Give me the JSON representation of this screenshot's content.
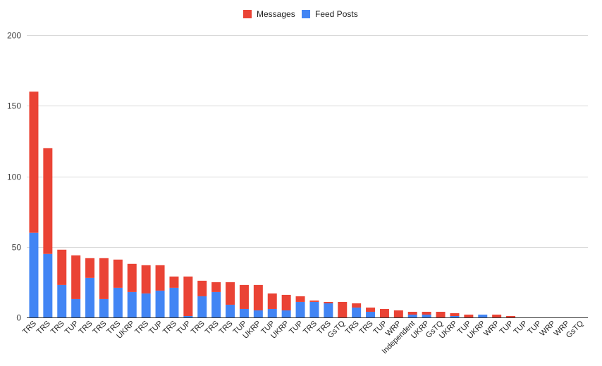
{
  "chart_data": {
    "type": "bar",
    "stacked": true,
    "title": "",
    "xlabel": "",
    "ylabel": "",
    "ylim": [
      0,
      200
    ],
    "yticks": [
      0,
      50,
      100,
      150,
      200
    ],
    "grid": true,
    "legend_position": "top-center",
    "categories": [
      "TRS",
      "TRS",
      "TRS",
      "TUP",
      "TRS",
      "TRS",
      "TRS",
      "UKRP",
      "TRS",
      "TUP",
      "TRS",
      "TUP",
      "TRS",
      "TRS",
      "TRS",
      "TUP",
      "UKRP",
      "TUP",
      "UKRP",
      "TUP",
      "TRS",
      "TRS",
      "GsTQ",
      "TRS",
      "TRS",
      "TUP",
      "WRP",
      "Independent",
      "UKRP",
      "GsTQ",
      "UKRP",
      "TUP",
      "UKRP",
      "WRP",
      "TUP",
      "TUP",
      "TUP",
      "WRP",
      "WRP",
      "GsTQ"
    ],
    "series": [
      {
        "name": "Feed Posts",
        "color": "#4285f4",
        "values": [
          60,
          45,
          23,
          13,
          28,
          13,
          21,
          18,
          17,
          19,
          21,
          1,
          15,
          18,
          9,
          6,
          5,
          6,
          5,
          11,
          11,
          10,
          0,
          7,
          4,
          0,
          0,
          2,
          2,
          0,
          1,
          0,
          2,
          0,
          0,
          0,
          0,
          0,
          0,
          0
        ]
      },
      {
        "name": "Messages",
        "color": "#ea4335",
        "values": [
          100,
          75,
          25,
          31,
          14,
          29,
          20,
          20,
          20,
          18,
          8,
          28,
          11,
          7,
          16,
          17,
          18,
          11,
          11,
          4,
          1,
          1,
          11,
          3,
          3,
          6,
          5,
          2,
          2,
          4,
          2,
          2,
          0,
          2,
          1,
          0,
          0,
          0,
          0,
          0
        ]
      }
    ],
    "legend_order": [
      "Messages",
      "Feed Posts"
    ]
  }
}
